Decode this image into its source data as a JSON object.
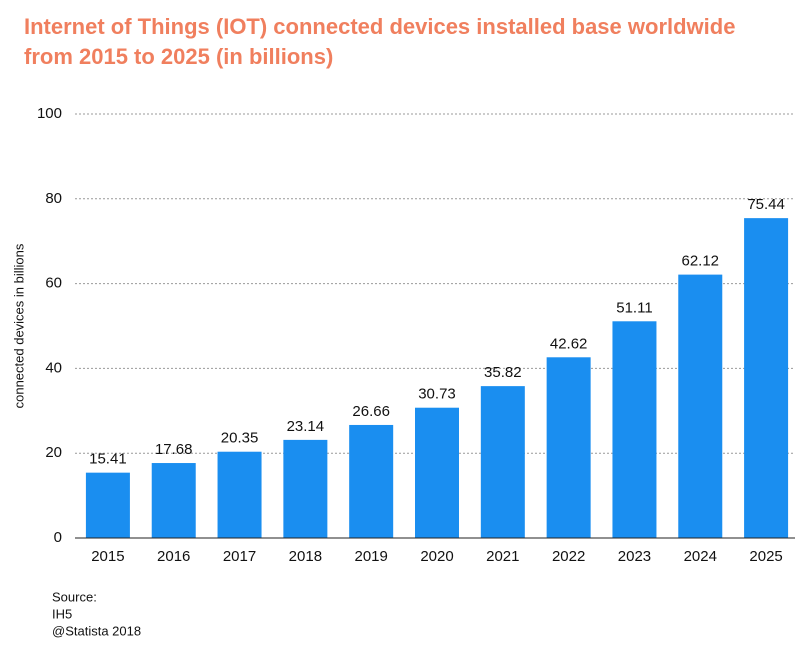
{
  "chart_data": {
    "type": "bar",
    "title": [
      "Internet of Things (IOT) connected devices installed base worldwide",
      "from 2015 to 2025 (in billions)"
    ],
    "y_label": "connected devices in billions",
    "categories": [
      "2015",
      "2016",
      "2017",
      "2018",
      "2019",
      "2020",
      "2021",
      "2022",
      "2023",
      "2024",
      "2025"
    ],
    "values": [
      15.41,
      17.68,
      20.35,
      23.14,
      26.66,
      30.73,
      35.82,
      42.62,
      51.11,
      62.12,
      75.44
    ],
    "value_labels": [
      "15.41",
      "17.68",
      "20.35",
      "23.14",
      "26.66",
      "30.73",
      "35.82",
      "42.62",
      "51.11",
      "62.12",
      "75.44"
    ],
    "color": "#1a8ef0",
    "ylim": [
      0,
      100
    ],
    "yticks": [
      0,
      20,
      40,
      60,
      80,
      100
    ],
    "grid": true,
    "source": [
      "Source:",
      "IH5",
      "@Statista 2018"
    ]
  }
}
